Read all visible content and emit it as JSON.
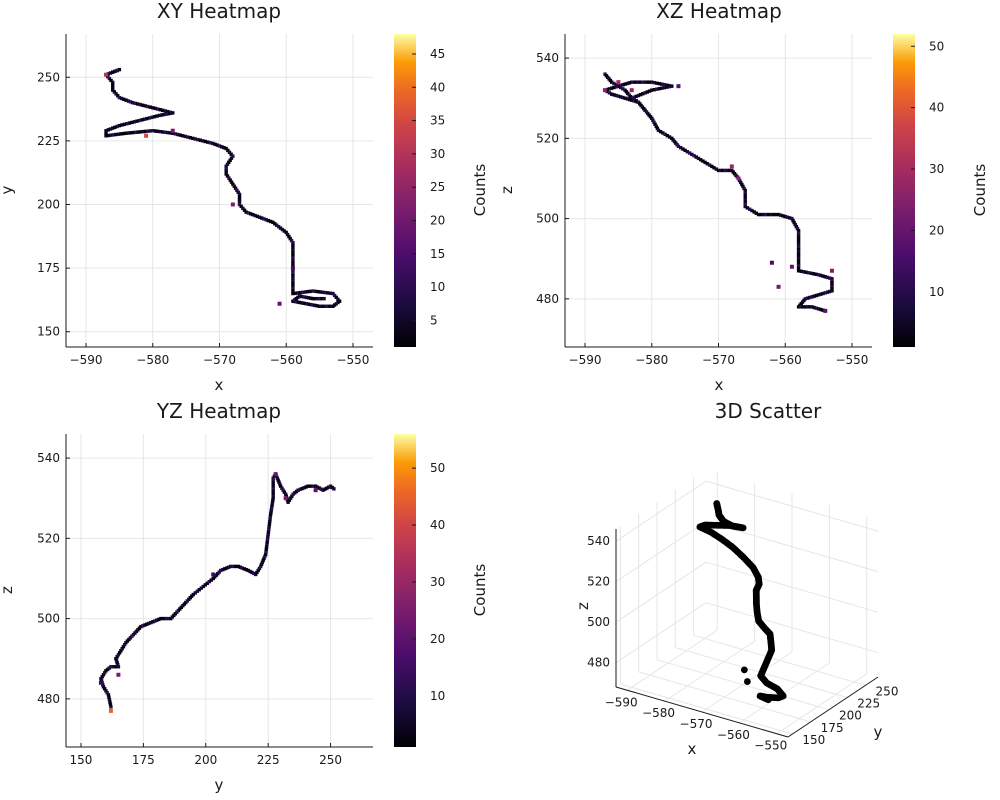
{
  "chart_data": [
    {
      "type": "heatmap",
      "title": "XY Heatmap",
      "xlabel": "x",
      "ylabel": "y",
      "xlim": [
        -593,
        -547
      ],
      "ylim": [
        144,
        267
      ],
      "xticks": [
        -590,
        -580,
        -570,
        -560,
        -550
      ],
      "yticks": [
        150,
        175,
        200,
        225,
        250
      ],
      "colorbar": {
        "label": "Counts",
        "range": [
          1,
          48
        ],
        "ticks": [
          5,
          10,
          15,
          20,
          25,
          30,
          35,
          40,
          45
        ]
      },
      "path": [
        [
          -586,
          252
        ],
        [
          -585,
          253
        ],
        [
          -587,
          251
        ],
        [
          -586,
          248
        ],
        [
          -586,
          245
        ],
        [
          -585,
          242
        ],
        [
          -583,
          240
        ],
        [
          -580,
          238
        ],
        [
          -577,
          236
        ],
        [
          -579,
          235
        ],
        [
          -582,
          233
        ],
        [
          -585,
          231
        ],
        [
          -587,
          229
        ],
        [
          -587,
          227
        ],
        [
          -584,
          228
        ],
        [
          -580,
          229
        ],
        [
          -577,
          228
        ],
        [
          -574,
          226
        ],
        [
          -571,
          224
        ],
        [
          -569,
          222
        ],
        [
          -568,
          219
        ],
        [
          -569,
          215
        ],
        [
          -569,
          212
        ],
        [
          -568,
          208
        ],
        [
          -567,
          204
        ],
        [
          -567,
          200
        ],
        [
          -566,
          197
        ],
        [
          -564,
          195
        ],
        [
          -562,
          193
        ],
        [
          -560,
          189
        ],
        [
          -559,
          185
        ],
        [
          -559,
          180
        ],
        [
          -559,
          175
        ],
        [
          -559,
          170
        ],
        [
          -559,
          165
        ],
        [
          -556,
          166
        ],
        [
          -553,
          165
        ],
        [
          -552,
          162
        ],
        [
          -553,
          160
        ],
        [
          -555,
          160
        ],
        [
          -557,
          161
        ],
        [
          -559,
          162
        ],
        [
          -558,
          164
        ],
        [
          -556,
          163
        ],
        [
          -554,
          163
        ]
      ],
      "hotspots": [
        {
          "x": -581,
          "y": 227,
          "count": 35
        },
        {
          "x": -587,
          "y": 251,
          "count": 30
        },
        {
          "x": -568,
          "y": 200,
          "count": 22
        },
        {
          "x": -577,
          "y": 229,
          "count": 22
        },
        {
          "x": -561,
          "y": 161,
          "count": 18
        },
        {
          "x": -559,
          "y": 175,
          "count": 14
        }
      ]
    },
    {
      "type": "heatmap",
      "title": "XZ Heatmap",
      "xlabel": "x",
      "ylabel": "z",
      "xlim": [
        -593,
        -547
      ],
      "ylim": [
        468,
        546
      ],
      "xticks": [
        -590,
        -580,
        -570,
        -560,
        -550
      ],
      "yticks": [
        480,
        500,
        520,
        540
      ],
      "colorbar": {
        "label": "Counts",
        "range": [
          1,
          52
        ],
        "ticks": [
          10,
          20,
          30,
          40,
          50
        ]
      },
      "path": [
        [
          -587,
          536
        ],
        [
          -586,
          534
        ],
        [
          -585,
          533
        ],
        [
          -584,
          532
        ],
        [
          -583,
          530
        ],
        [
          -582,
          529
        ],
        [
          -583,
          530
        ],
        [
          -580,
          532
        ],
        [
          -577,
          533
        ],
        [
          -580,
          534
        ],
        [
          -583,
          534
        ],
        [
          -585,
          533
        ],
        [
          -587,
          532
        ],
        [
          -586,
          531
        ],
        [
          -584,
          530
        ],
        [
          -582,
          529
        ],
        [
          -581,
          527
        ],
        [
          -580,
          525
        ],
        [
          -579,
          522
        ],
        [
          -577,
          520
        ],
        [
          -576,
          518
        ],
        [
          -574,
          516
        ],
        [
          -572,
          514
        ],
        [
          -570,
          512
        ],
        [
          -568,
          512
        ],
        [
          -567,
          510
        ],
        [
          -566,
          507
        ],
        [
          -566,
          503
        ],
        [
          -564,
          501
        ],
        [
          -561,
          501
        ],
        [
          -559,
          500
        ],
        [
          -558,
          497
        ],
        [
          -558,
          494
        ],
        [
          -558,
          490
        ],
        [
          -558,
          487
        ],
        [
          -555,
          486
        ],
        [
          -553,
          485
        ],
        [
          -553,
          484
        ],
        [
          -553,
          482
        ],
        [
          -555,
          481
        ],
        [
          -557,
          480
        ],
        [
          -558,
          478
        ],
        [
          -556,
          478
        ],
        [
          -554,
          477
        ]
      ],
      "hotspots": [
        {
          "x": -585,
          "y": 534,
          "count": 30
        },
        {
          "x": -587,
          "y": 532,
          "count": 25
        },
        {
          "x": -583,
          "y": 532,
          "count": 28
        },
        {
          "x": -568,
          "y": 513,
          "count": 28
        },
        {
          "x": -567,
          "y": 510,
          "count": 26
        },
        {
          "x": -559,
          "y": 488,
          "count": 20
        },
        {
          "x": -553,
          "y": 487,
          "count": 24
        },
        {
          "x": -561,
          "y": 483,
          "count": 22
        },
        {
          "x": -562,
          "y": 489,
          "count": 15
        },
        {
          "x": -554,
          "y": 477,
          "count": 18
        },
        {
          "x": -576,
          "y": 533,
          "count": 18
        }
      ]
    },
    {
      "type": "heatmap",
      "title": "YZ Heatmap",
      "xlabel": "y",
      "ylabel": "z",
      "xlim": [
        144,
        267
      ],
      "ylim": [
        468,
        546
      ],
      "xticks": [
        150,
        175,
        200,
        225,
        250
      ],
      "yticks": [
        480,
        500,
        520,
        540
      ],
      "colorbar": {
        "label": "Counts",
        "range": [
          1,
          56
        ],
        "ticks": [
          10,
          20,
          30,
          40,
          50
        ]
      },
      "path": [
        [
          162,
          478
        ],
        [
          161,
          481
        ],
        [
          159,
          483
        ],
        [
          158,
          485
        ],
        [
          160,
          487
        ],
        [
          162,
          488
        ],
        [
          165,
          488
        ],
        [
          164,
          490
        ],
        [
          166,
          492
        ],
        [
          168,
          494
        ],
        [
          171,
          496
        ],
        [
          174,
          498
        ],
        [
          178,
          499
        ],
        [
          182,
          500
        ],
        [
          186,
          500
        ],
        [
          189,
          502
        ],
        [
          192,
          504
        ],
        [
          195,
          506
        ],
        [
          199,
          508
        ],
        [
          203,
          510
        ],
        [
          206,
          512
        ],
        [
          210,
          513
        ],
        [
          213,
          513
        ],
        [
          217,
          512
        ],
        [
          220,
          511
        ],
        [
          222,
          513
        ],
        [
          224,
          516
        ],
        [
          225,
          521
        ],
        [
          226,
          526
        ],
        [
          227,
          530
        ],
        [
          227,
          535
        ],
        [
          228,
          536
        ],
        [
          230,
          533
        ],
        [
          232,
          531
        ],
        [
          233,
          529
        ],
        [
          235,
          531
        ],
        [
          237,
          532
        ],
        [
          241,
          533
        ],
        [
          244,
          533
        ],
        [
          247,
          532
        ],
        [
          250,
          533
        ],
        [
          252,
          532
        ]
      ],
      "hotspots": [
        {
          "x": 162,
          "y": 477,
          "count": 45
        },
        {
          "x": 165,
          "y": 486,
          "count": 25
        },
        {
          "x": 228,
          "y": 536,
          "count": 22
        },
        {
          "x": 232,
          "y": 530,
          "count": 25
        },
        {
          "x": 244,
          "y": 532,
          "count": 20
        },
        {
          "x": 203,
          "y": 511,
          "count": 15
        },
        {
          "x": 158,
          "y": 484,
          "count": 14
        }
      ]
    },
    {
      "type": "scatter",
      "title": "3D Scatter",
      "xlabel": "x",
      "ylabel": "y",
      "zlabel": "z",
      "xticks": [
        -590,
        -580,
        -570,
        -560,
        -550
      ],
      "yticks": [
        150,
        175,
        200,
        225,
        250
      ],
      "zticks": [
        480,
        500,
        520,
        540
      ],
      "xlim": [
        -593,
        -547
      ],
      "ylim": [
        144,
        267
      ],
      "zlim": [
        468,
        546
      ],
      "points": [
        [
          -587,
          251,
          536
        ],
        [
          -586,
          248,
          534
        ],
        [
          -585,
          244,
          533
        ],
        [
          -583,
          240,
          532
        ],
        [
          -580,
          237,
          532
        ],
        [
          -577,
          236,
          533
        ],
        [
          -580,
          234,
          533
        ],
        [
          -583,
          232,
          532
        ],
        [
          -586,
          230,
          531
        ],
        [
          -587,
          228,
          530
        ],
        [
          -584,
          228,
          529
        ],
        [
          -581,
          228,
          527
        ],
        [
          -578,
          227,
          525
        ],
        [
          -575,
          226,
          522
        ],
        [
          -572,
          224,
          519
        ],
        [
          -570,
          221,
          516
        ],
        [
          -569,
          217,
          514
        ],
        [
          -569,
          213,
          512
        ],
        [
          -568,
          208,
          511
        ],
        [
          -567,
          203,
          509
        ],
        [
          -566,
          199,
          506
        ],
        [
          -565,
          196,
          503
        ],
        [
          -563,
          194,
          501
        ],
        [
          -561,
          191,
          500
        ],
        [
          -560,
          187,
          498
        ],
        [
          -559,
          183,
          495
        ],
        [
          -559,
          178,
          492
        ],
        [
          -559,
          173,
          489
        ],
        [
          -559,
          168,
          486
        ],
        [
          -557,
          166,
          484
        ],
        [
          -554,
          165,
          483
        ],
        [
          -552,
          163,
          481
        ],
        [
          -553,
          161,
          480
        ],
        [
          -556,
          160,
          479
        ],
        [
          -558,
          162,
          478
        ],
        [
          -556,
          163,
          477
        ],
        [
          -561,
          160,
          484
        ],
        [
          -562,
          161,
          489
        ]
      ]
    }
  ]
}
